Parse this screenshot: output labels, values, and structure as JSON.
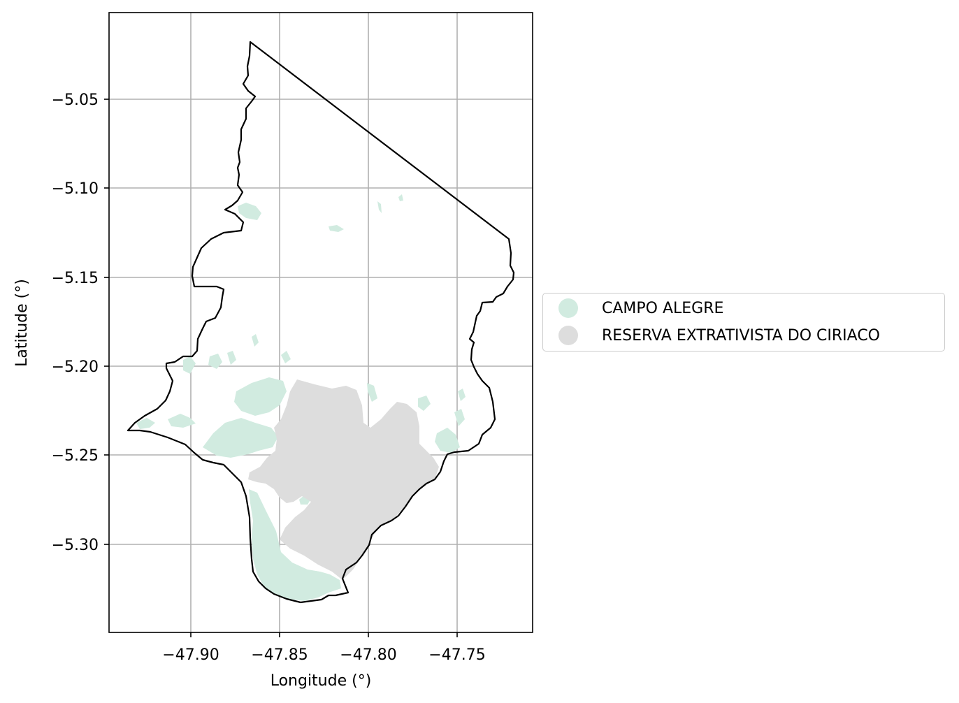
{
  "map": {
    "xlabel": "Longitude (°)",
    "ylabel": "Latitude (°)",
    "x_ticks": [
      "−47.90",
      "−47.85",
      "−47.80",
      "−47.75"
    ],
    "y_ticks": [
      "−5.05",
      "−5.10",
      "−5.15",
      "−5.20",
      "−5.25",
      "−5.30"
    ],
    "grid": true,
    "boundary_color": "#000000",
    "grid_color": "#b0b0b0"
  },
  "legend": {
    "placement": "right",
    "items": [
      {
        "label": "CAMPO ALEGRE",
        "color": "#d1ebe0"
      },
      {
        "label": "RESERVA EXTRATIVISTA DO CIRIACO",
        "color": "#dddddd"
      }
    ]
  }
}
